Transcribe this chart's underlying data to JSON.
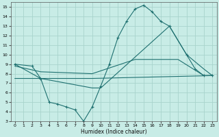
{
  "xlabel": "Humidex (Indice chaleur)",
  "xlim": [
    -0.5,
    23.5
  ],
  "ylim": [
    3,
    15.5
  ],
  "xticks": [
    0,
    1,
    2,
    3,
    4,
    5,
    6,
    7,
    8,
    9,
    10,
    11,
    12,
    13,
    14,
    15,
    16,
    17,
    18,
    19,
    20,
    21,
    22,
    23
  ],
  "yticks": [
    3,
    4,
    5,
    6,
    7,
    8,
    9,
    10,
    11,
    12,
    13,
    14,
    15
  ],
  "background_color": "#c8ece6",
  "grid_color": "#a8d4cc",
  "line_color": "#1e7070",
  "lines": [
    {
      "x": [
        0,
        2,
        3,
        4,
        5,
        6,
        7,
        8,
        9,
        10,
        11,
        12,
        13,
        14,
        15,
        16,
        17,
        18,
        20,
        21,
        22,
        23
      ],
      "y": [
        9,
        8.8,
        7.5,
        5.0,
        4.8,
        4.5,
        4.2,
        3.0,
        4.5,
        6.7,
        9.0,
        11.8,
        13.5,
        14.8,
        15.2,
        14.5,
        13.5,
        13.0,
        10.0,
        8.5,
        7.8,
        7.8
      ],
      "marker": true
    },
    {
      "x": [
        0,
        3,
        9,
        10,
        18,
        20,
        22,
        23
      ],
      "y": [
        9.0,
        7.5,
        6.5,
        6.5,
        13.0,
        10.0,
        8.5,
        7.8
      ],
      "marker": false
    },
    {
      "x": [
        0,
        3,
        9,
        14,
        19,
        22,
        23
      ],
      "y": [
        8.8,
        8.2,
        8.0,
        9.5,
        9.5,
        7.8,
        7.8
      ],
      "marker": false
    },
    {
      "x": [
        0,
        3,
        9,
        23
      ],
      "y": [
        7.5,
        7.5,
        7.5,
        7.8
      ],
      "marker": false
    }
  ]
}
